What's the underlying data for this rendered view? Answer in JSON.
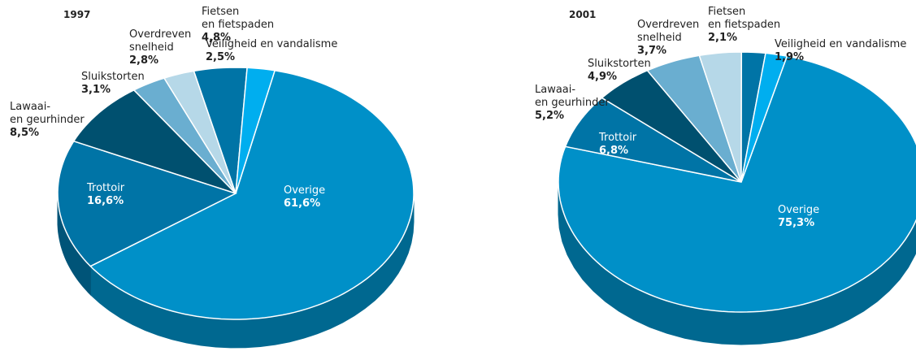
{
  "chart_data": [
    {
      "type": "pie",
      "title": "1997",
      "categories": [
        "Overige",
        "Trottoir",
        "Lawaai-\nen geurhinder",
        "Sluikstorten",
        "Overdreven\nsnelheid",
        "Fietsen\nen fietspaden",
        "Veiligheid en vandalisme"
      ],
      "values": [
        61.6,
        16.6,
        8.5,
        3.1,
        2.8,
        4.8,
        2.5
      ],
      "value_labels": [
        "61,6%",
        "16,6%",
        "8,5%",
        "3,1%",
        "2,8%",
        "4,8%",
        "2,5%"
      ],
      "colors": [
        "#0090c8",
        "#0074a6",
        "#00506f",
        "#6aaed0",
        "#b6d8e8",
        "#0074a6",
        "#00aeef"
      ]
    },
    {
      "type": "pie",
      "title": "2001",
      "categories": [
        "Overige",
        "Trottoir",
        "Lawaai-\nen geurhinder",
        "Sluikstorten",
        "Overdreven\nsnelheid",
        "Fietsen\nen fietspaden",
        "Veiligheid en vandalisme"
      ],
      "values": [
        75.3,
        6.8,
        5.2,
        4.9,
        3.7,
        2.1,
        1.9
      ],
      "value_labels": [
        "75,3%",
        "6,8%",
        "5,2%",
        "4,9%",
        "3,7%",
        "2,1%",
        "1,9%"
      ],
      "colors": [
        "#0090c8",
        "#0074a6",
        "#00506f",
        "#6aaed0",
        "#b6d8e8",
        "#0074a6",
        "#00aeef"
      ]
    }
  ]
}
